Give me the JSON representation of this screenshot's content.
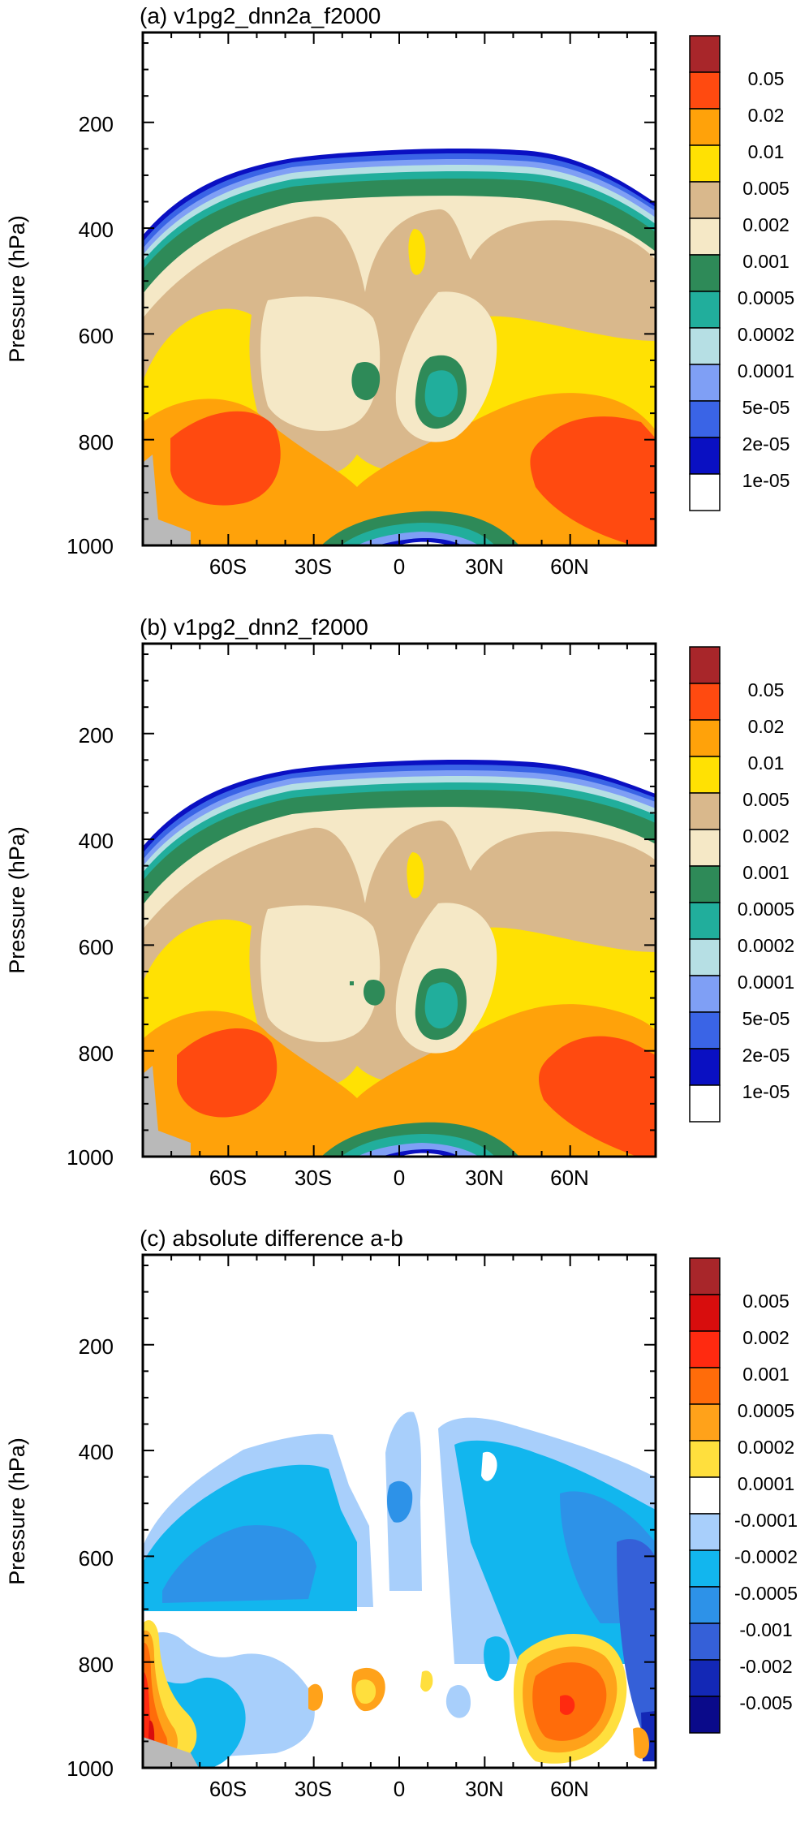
{
  "chart_data": [
    {
      "type": "heatmap",
      "title": "(a) v1pg2_dnn2a_f2000",
      "ylabel": "Pressure (hPa)",
      "xticks": [
        "60S",
        "30S",
        "0",
        "30N",
        "60N"
      ],
      "xtick_values": [
        -60,
        -30,
        0,
        30,
        60
      ],
      "xlim": [
        -90,
        90
      ],
      "yticks": [
        "200",
        "400",
        "600",
        "800",
        "1000"
      ],
      "ytick_values": [
        200,
        400,
        600,
        800,
        1000
      ],
      "ylim": [
        30,
        1000
      ],
      "colorbar_labels": [
        "0.05",
        "0.02",
        "0.01",
        "0.005",
        "0.002",
        "0.001",
        "0.0005",
        "0.0002",
        "0.0001",
        "5e-05",
        "2e-05",
        "1e-05"
      ],
      "colorbar_colors": [
        "#a8262a",
        "#ff4a10",
        "#ffa20a",
        "#ffe103",
        "#d9b88c",
        "#f5e8c6",
        "#2e8a58",
        "#21ae9c",
        "#b6dfe4",
        "#7f9ff5",
        "#3a64e6",
        "#0a10c2",
        "#ffffff"
      ]
    },
    {
      "type": "heatmap",
      "title": "(b) v1pg2_dnn2_f2000",
      "ylabel": "Pressure (hPa)",
      "xticks": [
        "60S",
        "30S",
        "0",
        "30N",
        "60N"
      ],
      "xtick_values": [
        -60,
        -30,
        0,
        30,
        60
      ],
      "xlim": [
        -90,
        90
      ],
      "yticks": [
        "200",
        "400",
        "600",
        "800",
        "1000"
      ],
      "ytick_values": [
        200,
        400,
        600,
        800,
        1000
      ],
      "ylim": [
        30,
        1000
      ],
      "colorbar_labels": [
        "0.05",
        "0.02",
        "0.01",
        "0.005",
        "0.002",
        "0.001",
        "0.0005",
        "0.0002",
        "0.0001",
        "5e-05",
        "2e-05",
        "1e-05"
      ],
      "colorbar_colors": [
        "#a8262a",
        "#ff4a10",
        "#ffa20a",
        "#ffe103",
        "#d9b88c",
        "#f5e8c6",
        "#2e8a58",
        "#21ae9c",
        "#b6dfe4",
        "#7f9ff5",
        "#3a64e6",
        "#0a10c2",
        "#ffffff"
      ]
    },
    {
      "type": "heatmap",
      "title": "(c) absolute difference a-b",
      "ylabel": "Pressure (hPa)",
      "xticks": [
        "60S",
        "30S",
        "0",
        "30N",
        "60N"
      ],
      "xtick_values": [
        -60,
        -30,
        0,
        30,
        60
      ],
      "xlim": [
        -90,
        90
      ],
      "yticks": [
        "200",
        "400",
        "600",
        "800",
        "1000"
      ],
      "ytick_values": [
        200,
        400,
        600,
        800,
        1000
      ],
      "ylim": [
        30,
        1000
      ],
      "colorbar_labels": [
        "0.005",
        "0.002",
        "0.001",
        "0.0005",
        "0.0002",
        "0.0001",
        "-0.0001",
        "-0.0002",
        "-0.0005",
        "-0.001",
        "-0.002",
        "-0.005"
      ],
      "colorbar_colors": [
        "#a8262a",
        "#d80d0d",
        "#ff2a10",
        "#ff6c0a",
        "#ffa21a",
        "#ffdf3d",
        "#ffffff",
        "#a8cffb",
        "#12b6ee",
        "#2d92e8",
        "#3560d8",
        "#1328b6",
        "#0a0a8a"
      ]
    }
  ],
  "colors": {
    "land_mask": "#b9b9b9"
  }
}
